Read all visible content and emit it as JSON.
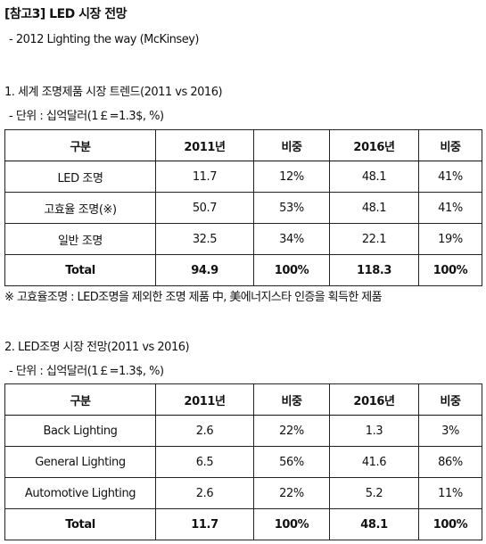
{
  "header": {
    "title": "[참고3] LED 시장 전망",
    "source": "- 2012 Lighting the way (McKinsey)"
  },
  "section1": {
    "title": "1. 세계 조명제품 시장 트렌드(2011 vs 2016)",
    "unit": "- 단위 : 십억달러(1￡=1.3$, %)",
    "columns": [
      "구분",
      "2011년",
      "비중",
      "2016년",
      "비중"
    ],
    "rows": [
      {
        "label": "LED 조명",
        "v2011": "11.7",
        "s2011": "12%",
        "v2016": "48.1",
        "s2016": "41%"
      },
      {
        "label": "고효율 조명(※)",
        "v2011": "50.7",
        "s2011": "53%",
        "v2016": "48.1",
        "s2016": "41%"
      },
      {
        "label": "일반 조명",
        "v2011": "32.5",
        "s2011": "34%",
        "v2016": "22.1",
        "s2016": "19%"
      }
    ],
    "total": {
      "label": "Total",
      "v2011": "94.9",
      "s2011": "100%",
      "v2016": "118.3",
      "s2016": "100%"
    },
    "note": "※ 고효율조명 : LED조명을 제외한 조명 제품 中, 美에너지스타 인증을 획득한 제품"
  },
  "section2": {
    "title": "2. LED조명 시장 전망(2011 vs 2016)",
    "unit": "- 단위 : 십억달러(1￡=1.3$, %)",
    "columns": [
      "구분",
      "2011년",
      "비중",
      "2016년",
      "비중"
    ],
    "rows": [
      {
        "label": "Back Lighting",
        "v2011": "2.6",
        "s2011": "22%",
        "v2016": "1.3",
        "s2016": "3%"
      },
      {
        "label": "General Lighting",
        "v2011": "6.5",
        "s2011": "56%",
        "v2016": "41.6",
        "s2016": "86%"
      },
      {
        "label": "Automotive Lighting",
        "v2011": "2.6",
        "s2011": "22%",
        "v2016": "5.2",
        "s2016": "11%"
      }
    ],
    "total": {
      "label": "Total",
      "v2011": "11.7",
      "s2011": "100%",
      "v2016": "48.1",
      "s2016": "100%"
    }
  }
}
